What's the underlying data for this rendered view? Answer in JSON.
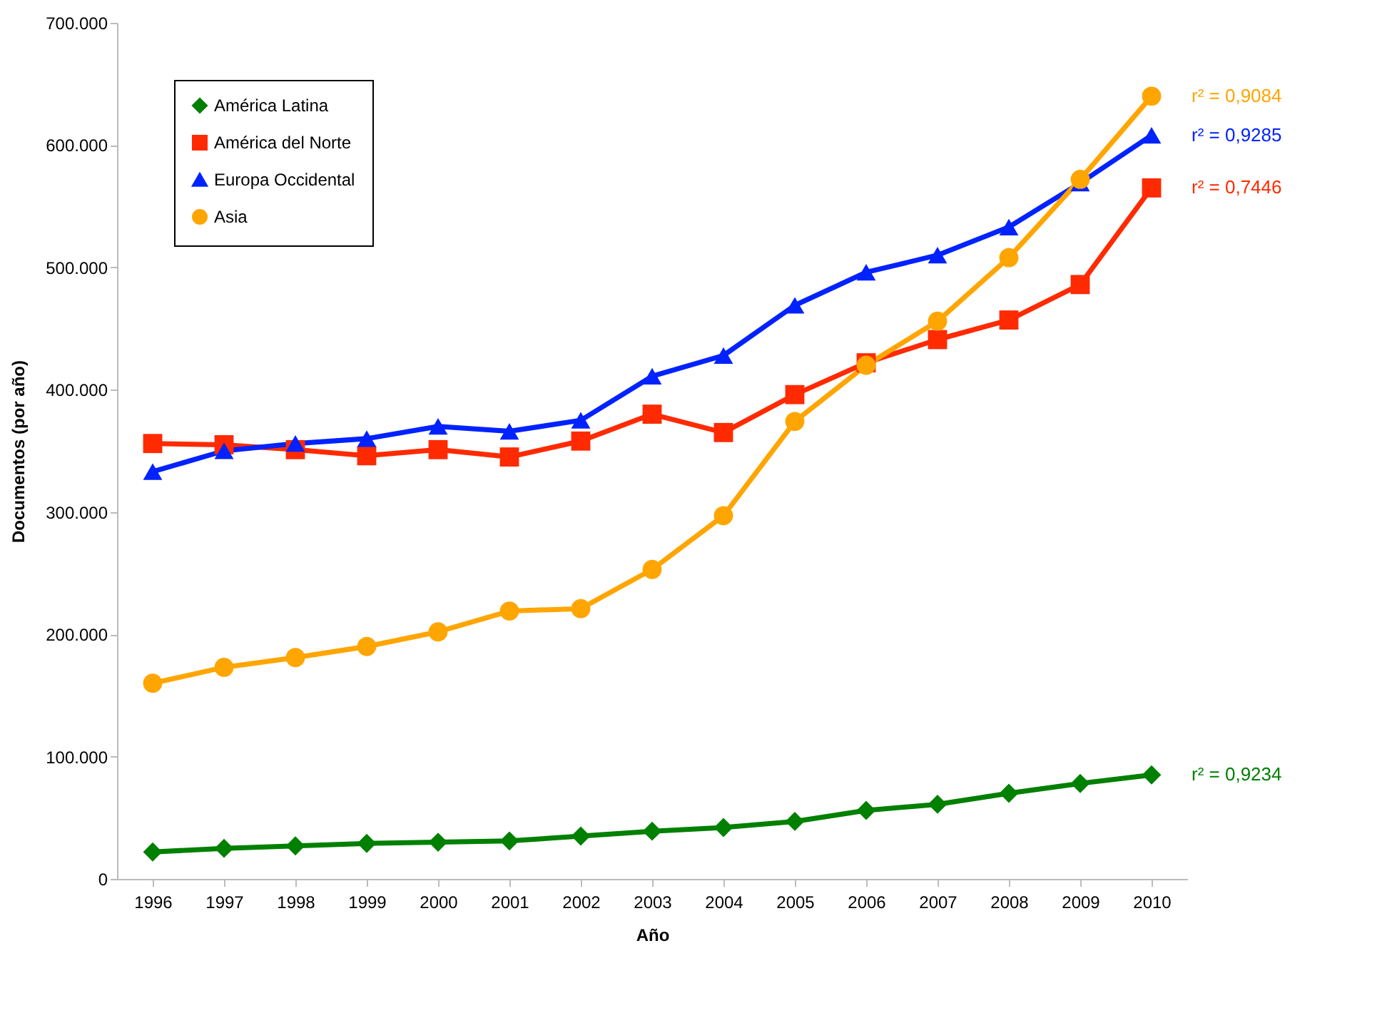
{
  "chart_data": {
    "type": "line",
    "xlabel": "Año",
    "ylabel": "Documentos (por año)",
    "categories": [
      "1996",
      "1997",
      "1998",
      "1999",
      "2000",
      "2001",
      "2002",
      "2003",
      "2004",
      "2005",
      "2006",
      "2007",
      "2008",
      "2009",
      "2010"
    ],
    "series": [
      {
        "name": "América Latina",
        "color": "#008000",
        "marker": "diamond",
        "values": [
          22000,
          25000,
          27000,
          29000,
          30000,
          31000,
          35000,
          39000,
          42000,
          47000,
          56000,
          61000,
          70000,
          78000,
          85000
        ]
      },
      {
        "name": "América del Norte",
        "color": "#ff2a00",
        "marker": "square",
        "values": [
          356000,
          355000,
          351000,
          346000,
          351000,
          345000,
          358000,
          380000,
          365000,
          396000,
          422000,
          441000,
          457000,
          486000,
          565000
        ]
      },
      {
        "name": "Europa Occidental",
        "color": "#0022ff",
        "marker": "triangle",
        "values": [
          333000,
          350000,
          356000,
          360000,
          370000,
          366000,
          375000,
          411000,
          428000,
          469000,
          496000,
          510000,
          533000,
          569000,
          608000
        ]
      },
      {
        "name": "Asia",
        "color": "#ffa500",
        "marker": "circle",
        "values": [
          160000,
          173000,
          181000,
          190000,
          202000,
          219000,
          221000,
          253000,
          297000,
          374000,
          420000,
          456000,
          508000,
          572000,
          640000
        ]
      }
    ],
    "ylim": [
      0,
      700000
    ],
    "yticks": [
      0,
      {
        "value": 100000,
        "label": "100.000"
      },
      {
        "value": 200000,
        "label": "200.000"
      },
      {
        "value": 300000,
        "label": "300.000"
      },
      {
        "value": 400000,
        "label": "400.000"
      },
      {
        "value": 500000,
        "label": "500.000"
      },
      {
        "value": 600000,
        "label": "600.000"
      },
      {
        "value": 700000,
        "label": "700.000"
      }
    ],
    "annotations": [
      {
        "text": "r² = 0,9084",
        "x": "2010",
        "y": 640000
      },
      {
        "text": "r² = 0,9285",
        "x": "2010",
        "y": 608000
      },
      {
        "text": "r² = 0,7446",
        "x": "2010",
        "y": 565000
      },
      {
        "text": "r² = 0,9234",
        "x": "2010",
        "y": 85000
      }
    ],
    "legend": "top left",
    "grid": false
  }
}
